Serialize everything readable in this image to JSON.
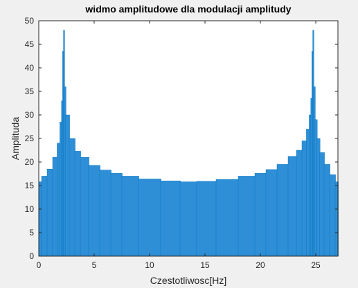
{
  "colors": {
    "figure_background": "#f0f0f0",
    "axes_background": "#ffffff",
    "bar_fill": "#0072BD",
    "bar_face": "#2e8fd6",
    "axis_line": "#262626",
    "text": "#262626"
  },
  "chart_data": {
    "type": "bar",
    "title": "widmo amplitudowe dla modulacji amplitudy",
    "xlabel": "Czestotliwosc[Hz]",
    "ylabel": "Amplituda",
    "xlim": [
      0,
      27
    ],
    "ylim": [
      0,
      50
    ],
    "x_ticks": [
      0,
      5,
      10,
      15,
      20,
      25
    ],
    "y_ticks": [
      0,
      5,
      10,
      15,
      20,
      25,
      30,
      35,
      40,
      45,
      50
    ],
    "grid": false,
    "legend": "none",
    "series": [
      {
        "x": [
          0.0,
          0.5,
          1.0,
          1.5,
          1.8,
          2.0,
          2.1,
          2.2,
          2.25,
          2.35,
          2.5,
          3.0,
          3.5,
          4.0,
          5.0,
          6.0,
          7.0,
          8.0,
          10.0,
          12.0,
          13.5,
          15.0,
          17.0,
          19.0,
          20.0,
          21.0,
          22.0,
          23.0,
          23.5,
          24.0,
          24.3,
          24.5,
          24.6,
          24.7,
          24.75,
          24.85,
          25.0,
          25.2,
          25.5,
          26.0,
          26.5,
          27.0
        ],
        "values": [
          15.8,
          17.0,
          18.5,
          21.0,
          24.0,
          28.5,
          33.0,
          43.5,
          48.0,
          36.0,
          30.0,
          25.0,
          22.3,
          21.0,
          19.3,
          18.3,
          17.6,
          17.0,
          16.4,
          16.0,
          15.8,
          15.9,
          16.3,
          17.0,
          17.6,
          18.4,
          19.5,
          21.2,
          22.5,
          24.5,
          27.0,
          30.0,
          33.5,
          43.5,
          48.0,
          36.0,
          29.0,
          25.0,
          22.0,
          19.5,
          17.3,
          15.8
        ]
      }
    ]
  }
}
